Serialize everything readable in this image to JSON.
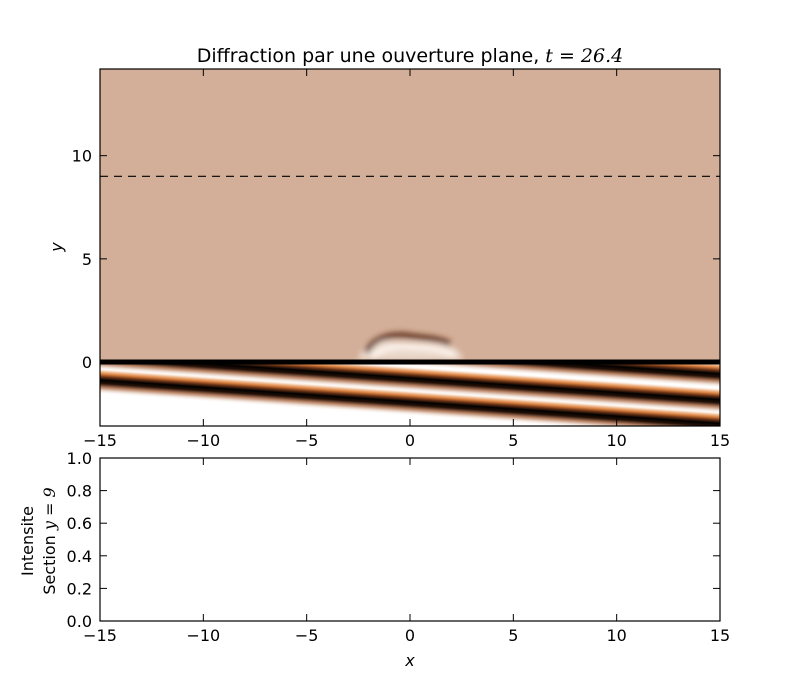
{
  "chart_data": [
    {
      "type": "heatmap",
      "title": "Diffraction par une ouverture plane, ",
      "title_math": "t = 26.4",
      "xlabel": "",
      "ylabel": "y",
      "xlim": [
        -15,
        15
      ],
      "ylim": [
        -3.1,
        14.2
      ],
      "xticks": [
        -15,
        -10,
        -5,
        0,
        5,
        10,
        15
      ],
      "xtick_labels": [
        "−15",
        "−10",
        "−5",
        "0",
        "5",
        "10",
        "15"
      ],
      "yticks": [
        0,
        5,
        10
      ],
      "ytick_labels": [
        "0",
        "5",
        "10"
      ],
      "colormap": "copper",
      "background_color": "#d3ae98",
      "screen": {
        "y": 0,
        "aperture": [
          -2.5,
          2.5
        ]
      },
      "observation_line": {
        "y": 9,
        "style": "dashed"
      },
      "incident_wave_stripes_x15_y": [
        -0.6,
        -1.85,
        -3.0
      ],
      "stripe_slope": 0.07,
      "grid": false
    },
    {
      "type": "line",
      "title": "",
      "xlabel": "x",
      "ylabel_lines": [
        "Intensite",
        "Section "
      ],
      "ylabel_math": "y = 9",
      "xlim": [
        -15,
        15
      ],
      "ylim": [
        0,
        1
      ],
      "xticks": [
        -15,
        -10,
        -5,
        0,
        5,
        10,
        15
      ],
      "xtick_labels": [
        "−15",
        "−10",
        "−5",
        "0",
        "5",
        "10",
        "15"
      ],
      "yticks": [
        0,
        0.2,
        0.4,
        0.6,
        0.8,
        1.0
      ],
      "ytick_labels": [
        "0.0",
        "0.2",
        "0.4",
        "0.6",
        "0.8",
        "1.0"
      ],
      "series": [],
      "grid": false
    }
  ]
}
